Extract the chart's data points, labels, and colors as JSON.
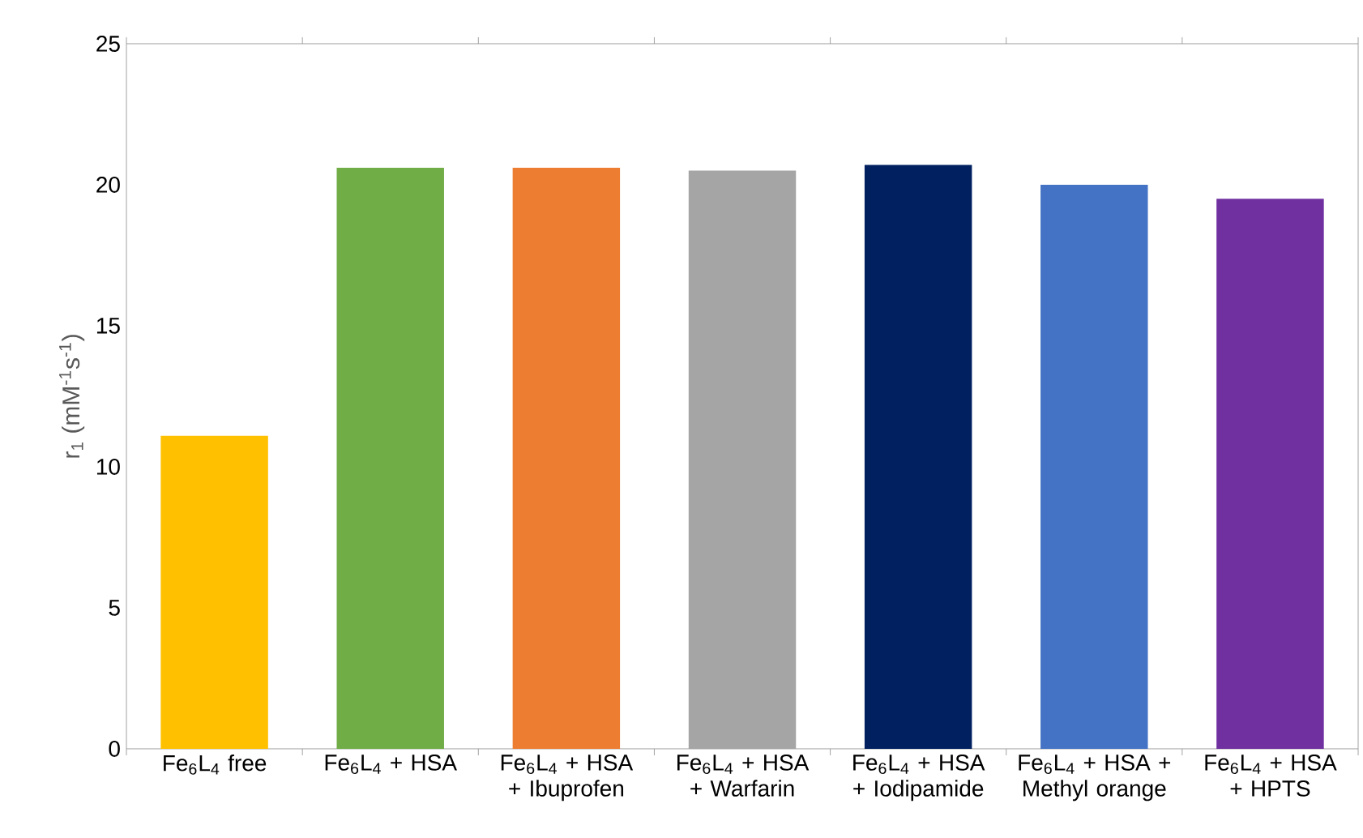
{
  "chart_data": {
    "type": "bar",
    "ylabel": "r$_{1}$ (mM$^{-1}$s$^{-1}$)",
    "categories": [
      "Fe$_{6}$L$_{4}$ free",
      "Fe$_{6}$L$_{4}$ + HSA",
      "Fe$_{6}$L$_{4}$ + HSA + Ibuprofen",
      "Fe$_{6}$L$_{4}$ + HSA + Warfarin",
      "Fe$_{6}$L$_{4}$ + HSA + Iodipamide",
      "Fe$_{6}$L$_{4}$ + HSA + Methyl orange",
      "Fe$_{6}$L$_{4}$ + HSA + HPTS"
    ],
    "values": [
      11.1,
      20.6,
      20.6,
      20.5,
      20.7,
      20.0,
      19.5
    ],
    "colors": [
      "#ffc000",
      "#70ad47",
      "#ed7d31",
      "#a5a5a5",
      "#002060",
      "#4472c4",
      "#7030a0"
    ],
    "ylim": [
      0,
      25
    ],
    "yticks": [
      0,
      5,
      10,
      15,
      20,
      25
    ]
  }
}
